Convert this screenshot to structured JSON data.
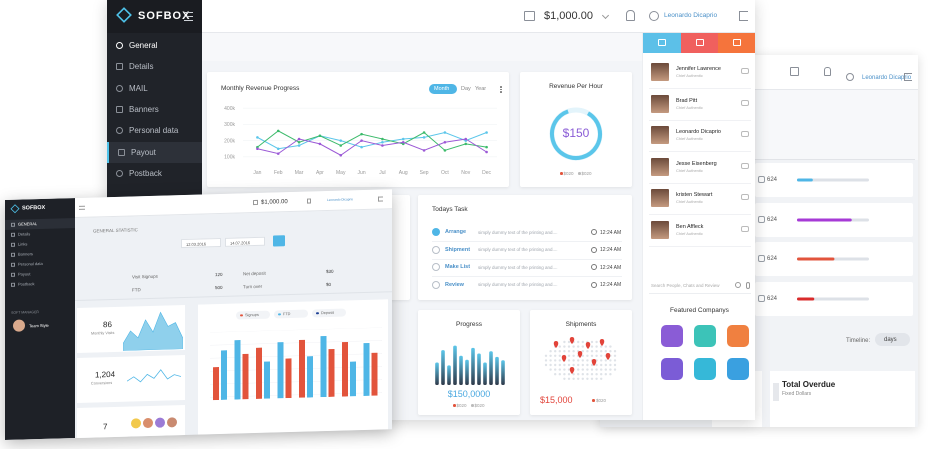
{
  "main": {
    "logo": "SOFBOX",
    "menu": [
      "General",
      "Details",
      "MAIL",
      "Banners",
      "Personal data",
      "Payout",
      "Postback"
    ],
    "balance": "$1,000.00",
    "user": "Leonardo Dicaprio",
    "revenue": {
      "title": "Monthly Revenue Progress",
      "tabs": [
        "Month",
        "Day",
        "Year"
      ],
      "ylim": [
        50,
        450
      ],
      "yticks": [
        {
          "value": 400,
          "label": "400k"
        },
        {
          "value": 300,
          "label": "300k"
        },
        {
          "value": 200,
          "label": "200k"
        },
        {
          "value": 100,
          "label": "100k"
        }
      ],
      "categories": [
        "Jan",
        "Feb",
        "Mar",
        "Apr",
        "May",
        "Jun",
        "Jul",
        "Aug",
        "Sep",
        "Oct",
        "Nov",
        "Dec"
      ],
      "series": [
        {
          "color": "#5bc6ea",
          "values": [
            220,
            150,
            170,
            230,
            200,
            160,
            190,
            210,
            220,
            250,
            200,
            250
          ]
        },
        {
          "color": "#3dbb6c",
          "values": [
            160,
            260,
            190,
            230,
            170,
            240,
            210,
            180,
            250,
            140,
            180,
            160
          ]
        },
        {
          "color": "#9b59d6",
          "values": [
            150,
            120,
            210,
            180,
            110,
            200,
            170,
            190,
            140,
            190,
            210,
            130
          ]
        }
      ]
    },
    "revenue_per_hour": {
      "title": "Revenue Per Hour",
      "value": "$150",
      "legend": [
        "$020",
        "$020"
      ]
    },
    "tasks": {
      "title": "Todays Task",
      "items": [
        {
          "name": "Arrange",
          "text": "simply dummy text of the printing and....",
          "time": "12:24 AM"
        },
        {
          "name": "Shipment",
          "text": "simply dummy text of the printing and....",
          "time": "12:24 AM"
        },
        {
          "name": "Make List",
          "text": "simply dummy text of the printing and....",
          "time": "12:24 AM"
        },
        {
          "name": "Review",
          "text": "simply dummy text of the printing and....",
          "time": "12:24 AM"
        }
      ]
    },
    "progress": {
      "title": "Progress",
      "value": "$150,0000",
      "legend": [
        "$020",
        "$020"
      ],
      "bars": [
        40,
        62,
        35,
        70,
        52,
        45,
        66,
        56,
        40,
        60,
        50,
        44
      ]
    },
    "shipments": {
      "title": "Shipments",
      "value": "$15,000",
      "legend": [
        "$020"
      ]
    }
  },
  "contacts": {
    "people": [
      {
        "name": "Jennifer Lawrence",
        "role": "Chief Authentic"
      },
      {
        "name": "Brad Pitt",
        "role": "Chief Authentic"
      },
      {
        "name": "Leonardo Dicaprio",
        "role": "Chief Authentic"
      },
      {
        "name": "Jesse Eisenberg",
        "role": "Chief Authentic"
      },
      {
        "name": "kristen Stewart",
        "role": "Chief Authentic"
      },
      {
        "name": "Ben Affleck",
        "role": "Chief Authentic"
      }
    ],
    "search": "Search People, Chats and Review",
    "featured": "Featured Companys"
  },
  "back": {
    "user": "Leonardo Dicaprio",
    "rows": [
      {
        "label": "624",
        "progress": 22,
        "color": "#4fb6e6"
      },
      {
        "label": "624",
        "progress": 76,
        "color": "#a63ad6"
      },
      {
        "label": "624",
        "progress": 52,
        "color": "#e2543c"
      },
      {
        "label": "624",
        "progress": 24,
        "color": "#d92b2b"
      }
    ],
    "timeline": "Timeline:",
    "period": "days",
    "overdue": "Total Overdue",
    "overdue_sub": "Fixed Dollars"
  },
  "front": {
    "logo": "SOFBOX",
    "menu": [
      "GENERAL",
      "Details",
      "Links",
      "Banners",
      "Personal data",
      "Payout",
      "Postback"
    ],
    "team_label": "SOFT MANAGER",
    "manager": "Team Style",
    "balance": "$1,000.00",
    "user": "Leonardo Dicaprio",
    "title": "GENERAL STATISTIC",
    "dates": [
      "12.03.2016",
      "14.07.2016"
    ],
    "stats": [
      {
        "label": "Visit Signups",
        "value": "120"
      },
      {
        "label": "FTD",
        "value": "500"
      },
      {
        "label": "Net deposit",
        "value": "$30"
      },
      {
        "label": "Turn over",
        "value": "$0"
      }
    ],
    "side": [
      {
        "value": "86",
        "label": "Monthly Visits"
      },
      {
        "value": "1,204",
        "label": "Conversions"
      },
      {
        "value": "7"
      }
    ],
    "visits_chart": [
      8,
      22,
      14,
      34,
      20,
      42,
      26,
      30,
      12
    ],
    "conversion_chart": [
      10,
      14,
      9,
      16,
      12,
      20,
      11,
      15,
      13
    ],
    "legend": [
      {
        "name": "Signups",
        "color": "#e2543c"
      },
      {
        "name": "FTD",
        "color": "#4fb6e6"
      },
      {
        "name": "Deposit",
        "color": "#1c3f94"
      }
    ],
    "bars_red": [
      40,
      55,
      62,
      48,
      70,
      58,
      66,
      52
    ],
    "bars_blue": [
      60,
      72,
      45,
      68,
      50,
      74,
      42,
      64
    ]
  }
}
